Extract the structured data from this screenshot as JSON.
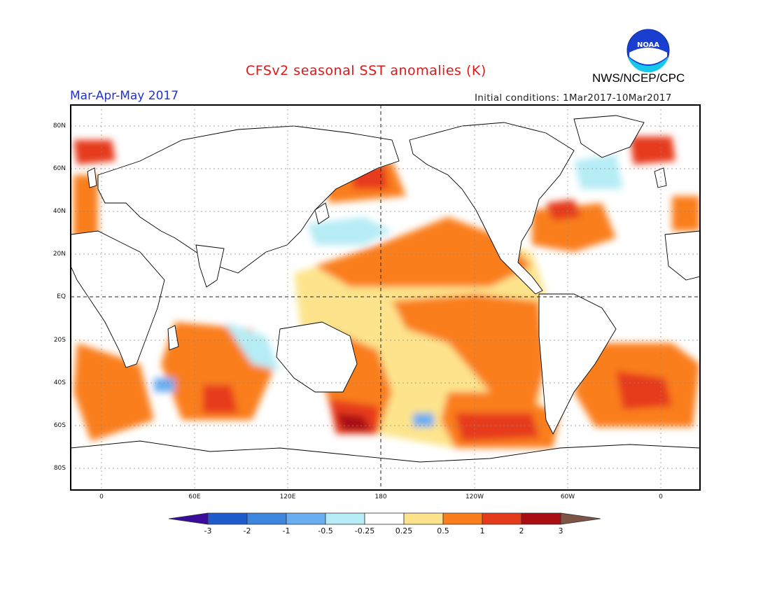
{
  "title": "CFSv2 seasonal SST anomalies (K)",
  "agency": "NWS/NCEP/CPC",
  "logo_text": "NOAA",
  "season": "Mar-Apr-May 2017",
  "initial_conditions": "Initial conditions: 1Mar2017-10Mar2017",
  "lat_labels": [
    "80N",
    "60N",
    "40N",
    "20N",
    "EQ",
    "20S",
    "40S",
    "60S",
    "80S"
  ],
  "lon_labels": [
    "0",
    "60E",
    "120E",
    "180",
    "120W",
    "60W",
    "0"
  ],
  "colorbar": {
    "labels": [
      "-3",
      "-2",
      "-1",
      "-0.5",
      "-0.25",
      "0.25",
      "0.5",
      "1",
      "2",
      "3"
    ],
    "colors": [
      "#3a0c9e",
      "#1f5bcd",
      "#3d86e0",
      "#6aaef0",
      "#b6ecf5",
      "#ffffff",
      "#fde48c",
      "#fa7e1e",
      "#e63a1c",
      "#a80d12",
      "#7e5447"
    ]
  },
  "colors": {
    "title": "#e01818",
    "season": "#2233cc",
    "land": "#ffffff",
    "grid": "#888888"
  }
}
